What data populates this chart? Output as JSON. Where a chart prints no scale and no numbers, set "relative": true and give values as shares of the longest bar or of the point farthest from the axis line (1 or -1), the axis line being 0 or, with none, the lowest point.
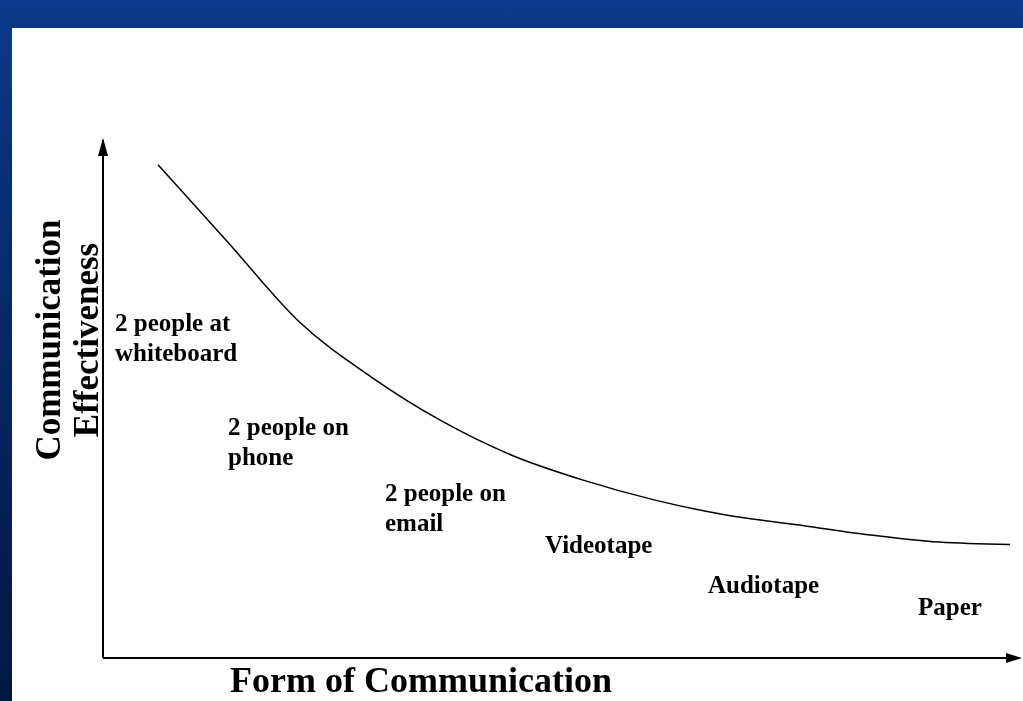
{
  "chart_data": {
    "type": "line",
    "relative": true,
    "xlabel": "Form of Communication",
    "ylabel": "Communication Effectiveness",
    "categories": [
      null,
      null,
      null,
      null,
      null,
      null,
      null,
      null,
      null,
      null,
      null,
      null,
      null
    ],
    "series": [
      {
        "color": "#000000",
        "values": [
          1,
          0.84,
          0.68,
          0.57,
          0.48,
          0.41,
          0.36,
          0.32,
          0.29,
          0.27,
          0.25,
          0.235,
          0.23
        ]
      }
    ],
    "marker": "none",
    "grid": false,
    "legend": false,
    "annotations": [
      "2 people at whiteboard",
      "2 people on phone",
      "2 people on email",
      "Videotape",
      "Audiotape",
      "Paper"
    ]
  }
}
